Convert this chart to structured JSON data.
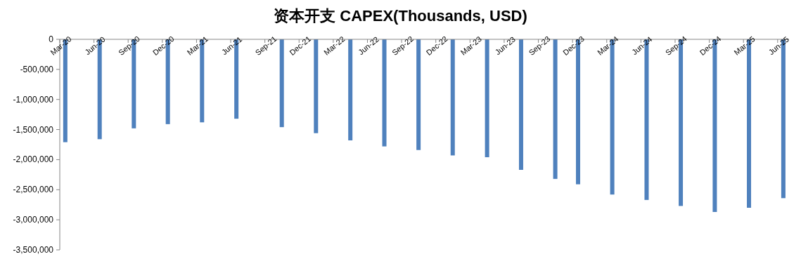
{
  "chart_data": {
    "type": "bar",
    "title": "资本开支 CAPEX(Thousands, USD)",
    "x": [
      "2020-03-16",
      "2020-06-16",
      "2020-09-16",
      "2020-12-16",
      "2021-03-16",
      "2021-06-16",
      "2021-10-16",
      "2022-01-16",
      "2022-04-16",
      "2022-07-16",
      "2022-10-16",
      "2023-01-16",
      "2023-04-16",
      "2023-07-16",
      "2023-10-16",
      "2023-12-16",
      "2024-03-16",
      "2024-06-16",
      "2024-09-16",
      "2024-12-16",
      "2025-03-16",
      "2025-06-16"
    ],
    "values": [
      -1710000,
      -1660000,
      -1480000,
      -1410000,
      -1380000,
      -1320000,
      -1460000,
      -1560000,
      -1680000,
      -1780000,
      -1840000,
      -1930000,
      -1960000,
      -2170000,
      -2320000,
      -2410000,
      -2580000,
      -2670000,
      -2770000,
      -2870000,
      -2800000,
      -2640000
    ],
    "color": "#4f81bd",
    "xlim": [
      "2020-03-01",
      "2025-07-01"
    ],
    "xticks": [
      {
        "value": "2020-03-01",
        "label": "Mar-20"
      },
      {
        "value": "2020-06-01",
        "label": "Jun-20"
      },
      {
        "value": "2020-09-01",
        "label": "Sep-20"
      },
      {
        "value": "2020-12-01",
        "label": "Dec-20"
      },
      {
        "value": "2021-03-01",
        "label": "Mar-21"
      },
      {
        "value": "2021-06-01",
        "label": "Jun-21"
      },
      {
        "value": "2021-09-01",
        "label": "Sep-21"
      },
      {
        "value": "2021-12-01",
        "label": "Dec-21"
      },
      {
        "value": "2022-03-01",
        "label": "Mar-22"
      },
      {
        "value": "2022-06-01",
        "label": "Jun-22"
      },
      {
        "value": "2022-09-01",
        "label": "Sep-22"
      },
      {
        "value": "2022-12-01",
        "label": "Dec-22"
      },
      {
        "value": "2023-03-01",
        "label": "Mar-23"
      },
      {
        "value": "2023-06-01",
        "label": "Jun-23"
      },
      {
        "value": "2023-09-01",
        "label": "Sep-23"
      },
      {
        "value": "2023-12-01",
        "label": "Dec-23"
      },
      {
        "value": "2024-03-01",
        "label": "Mar-24"
      },
      {
        "value": "2024-06-01",
        "label": "Jun-24"
      },
      {
        "value": "2024-09-01",
        "label": "Sep-24"
      },
      {
        "value": "2024-12-01",
        "label": "Dec-24"
      },
      {
        "value": "2025-03-01",
        "label": "Mar-25"
      },
      {
        "value": "2025-06-01",
        "label": "Jun-25"
      }
    ],
    "ylim": [
      -3500000,
      0
    ],
    "yticks": [
      0,
      {
        "value": -500000,
        "label": "-500,000"
      },
      {
        "value": -1000000,
        "label": "-1,000,000"
      },
      {
        "value": -1500000,
        "label": "-1,500,000"
      },
      {
        "value": -2000000,
        "label": "-2,000,000"
      },
      {
        "value": -2500000,
        "label": "-2,500,000"
      },
      {
        "value": -3000000,
        "label": "-3,000,000"
      },
      {
        "value": -3500000,
        "label": "-3,500,000"
      }
    ]
  }
}
